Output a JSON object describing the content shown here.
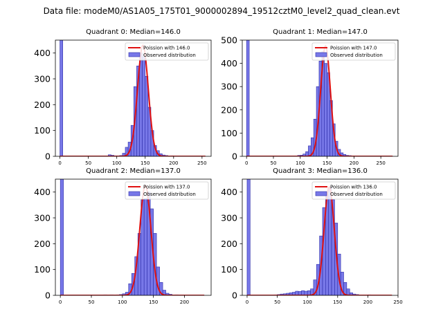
{
  "figure": {
    "suptitle": "Data file: modeM0/AS1A05_175T01_9000002894_19512cztM0_level2_quad_clean.evt"
  },
  "colors": {
    "histogram_fill": "#7878e8",
    "histogram_edge": "#2c2ca8",
    "poisson_line": "#e01010"
  },
  "chart_data": [
    {
      "type": "bar",
      "title": "Quadrant 0: Median=146.0",
      "median": 146.0,
      "xlim": [
        -8,
        266
      ],
      "ylim": [
        0,
        450
      ],
      "xticks": [
        0,
        50,
        100,
        150,
        200,
        250
      ],
      "yticks": [
        0,
        100,
        200,
        300,
        400
      ],
      "legend": [
        "Poission with 146.0",
        "Observed distribution"
      ],
      "legend_position": "upper-right",
      "zero_bar": {
        "x": 0,
        "value": 450
      },
      "bin_width": 5,
      "bins": [
        [
          85,
          6
        ],
        [
          90,
          4
        ],
        [
          95,
          2
        ],
        [
          100,
          2
        ],
        [
          105,
          3
        ],
        [
          110,
          12
        ],
        [
          115,
          35
        ],
        [
          120,
          55
        ],
        [
          125,
          120
        ],
        [
          130,
          270
        ],
        [
          135,
          350
        ],
        [
          140,
          400
        ],
        [
          145,
          385
        ],
        [
          150,
          310
        ],
        [
          155,
          190
        ],
        [
          160,
          100
        ],
        [
          165,
          42
        ],
        [
          170,
          22
        ],
        [
          175,
          10
        ],
        [
          180,
          5
        ],
        [
          185,
          3
        ],
        [
          195,
          2
        ],
        [
          200,
          1
        ]
      ],
      "poisson": {
        "mean": 146.0,
        "peak": 430,
        "sigma": 9.5,
        "x_range": [
          0,
          256
        ]
      }
    },
    {
      "type": "bar",
      "title": "Quadrant 1: Median=147.0",
      "median": 147.0,
      "xlim": [
        -8,
        282
      ],
      "ylim": [
        0,
        500
      ],
      "xticks": [
        0,
        50,
        100,
        150,
        200,
        250
      ],
      "yticks": [
        0,
        100,
        200,
        300,
        400,
        500
      ],
      "legend": [
        "Poission with 147.0",
        "Observed distribution"
      ],
      "legend_position": "upper-right",
      "zero_bar": {
        "x": 0,
        "value": 500
      },
      "bin_width": 5,
      "bins": [
        [
          80,
          2
        ],
        [
          95,
          4
        ],
        [
          100,
          5
        ],
        [
          105,
          10
        ],
        [
          110,
          20
        ],
        [
          115,
          45
        ],
        [
          120,
          80
        ],
        [
          125,
          160
        ],
        [
          130,
          300
        ],
        [
          135,
          410
        ],
        [
          140,
          450
        ],
        [
          145,
          400
        ],
        [
          150,
          360
        ],
        [
          155,
          240
        ],
        [
          160,
          140
        ],
        [
          165,
          65
        ],
        [
          170,
          30
        ],
        [
          175,
          15
        ],
        [
          180,
          8
        ],
        [
          185,
          4
        ],
        [
          190,
          3
        ],
        [
          200,
          2
        ],
        [
          205,
          2
        ],
        [
          215,
          1
        ],
        [
          225,
          1
        ]
      ],
      "poisson": {
        "mean": 147.0,
        "peak": 475,
        "sigma": 9.0,
        "x_range": [
          0,
          272
        ]
      }
    },
    {
      "type": "bar",
      "title": "Quadrant 2: Median=137.0",
      "median": 137.0,
      "xlim": [
        -8,
        243
      ],
      "ylim": [
        0,
        450
      ],
      "xticks": [
        0,
        50,
        100,
        150,
        200
      ],
      "yticks": [
        0,
        100,
        200,
        300,
        400
      ],
      "legend": [
        "Poission with 137.0",
        "Observed distribution"
      ],
      "legend_position": "upper-right",
      "zero_bar": {
        "x": 0,
        "value": 450
      },
      "bin_width": 5,
      "bins": [
        [
          70,
          2
        ],
        [
          80,
          2
        ],
        [
          90,
          2
        ],
        [
          95,
          3
        ],
        [
          100,
          6
        ],
        [
          105,
          12
        ],
        [
          110,
          45
        ],
        [
          115,
          85
        ],
        [
          120,
          150
        ],
        [
          125,
          240
        ],
        [
          130,
          370
        ],
        [
          135,
          375
        ],
        [
          140,
          400
        ],
        [
          145,
          335
        ],
        [
          150,
          240
        ],
        [
          155,
          110
        ],
        [
          160,
          50
        ],
        [
          165,
          20
        ],
        [
          170,
          8
        ],
        [
          175,
          4
        ],
        [
          185,
          2
        ],
        [
          195,
          1
        ],
        [
          205,
          1
        ]
      ],
      "poisson": {
        "mean": 137.0,
        "peak": 425,
        "sigma": 9.0,
        "x_range": [
          0,
          232
        ]
      }
    },
    {
      "type": "bar",
      "title": "Quadrant 3: Median=136.0",
      "median": 136.0,
      "xlim": [
        -8,
        250
      ],
      "ylim": [
        0,
        450
      ],
      "xticks": [
        0,
        50,
        100,
        150,
        200,
        250
      ],
      "yticks": [
        0,
        100,
        200,
        300,
        400
      ],
      "legend": [
        "Poission with 136.0",
        "Observed distribution"
      ],
      "legend_position": "upper-right",
      "zero_bar": {
        "x": 0,
        "value": 450
      },
      "bin_width": 5,
      "bins": [
        [
          45,
          2
        ],
        [
          50,
          3
        ],
        [
          55,
          5
        ],
        [
          60,
          6
        ],
        [
          65,
          8
        ],
        [
          70,
          10
        ],
        [
          75,
          12
        ],
        [
          80,
          16
        ],
        [
          85,
          15
        ],
        [
          90,
          18
        ],
        [
          95,
          16
        ],
        [
          100,
          18
        ],
        [
          105,
          25
        ],
        [
          110,
          60
        ],
        [
          115,
          120
        ],
        [
          120,
          230
        ],
        [
          125,
          340
        ],
        [
          130,
          390
        ],
        [
          135,
          420
        ],
        [
          140,
          370
        ],
        [
          145,
          280
        ],
        [
          150,
          160
        ],
        [
          155,
          90
        ],
        [
          160,
          50
        ],
        [
          165,
          25
        ],
        [
          170,
          10
        ],
        [
          175,
          5
        ],
        [
          180,
          3
        ],
        [
          200,
          2
        ],
        [
          210,
          1
        ]
      ],
      "poisson": {
        "mean": 136.0,
        "peak": 420,
        "sigma": 8.5,
        "x_range": [
          0,
          240
        ]
      }
    }
  ]
}
